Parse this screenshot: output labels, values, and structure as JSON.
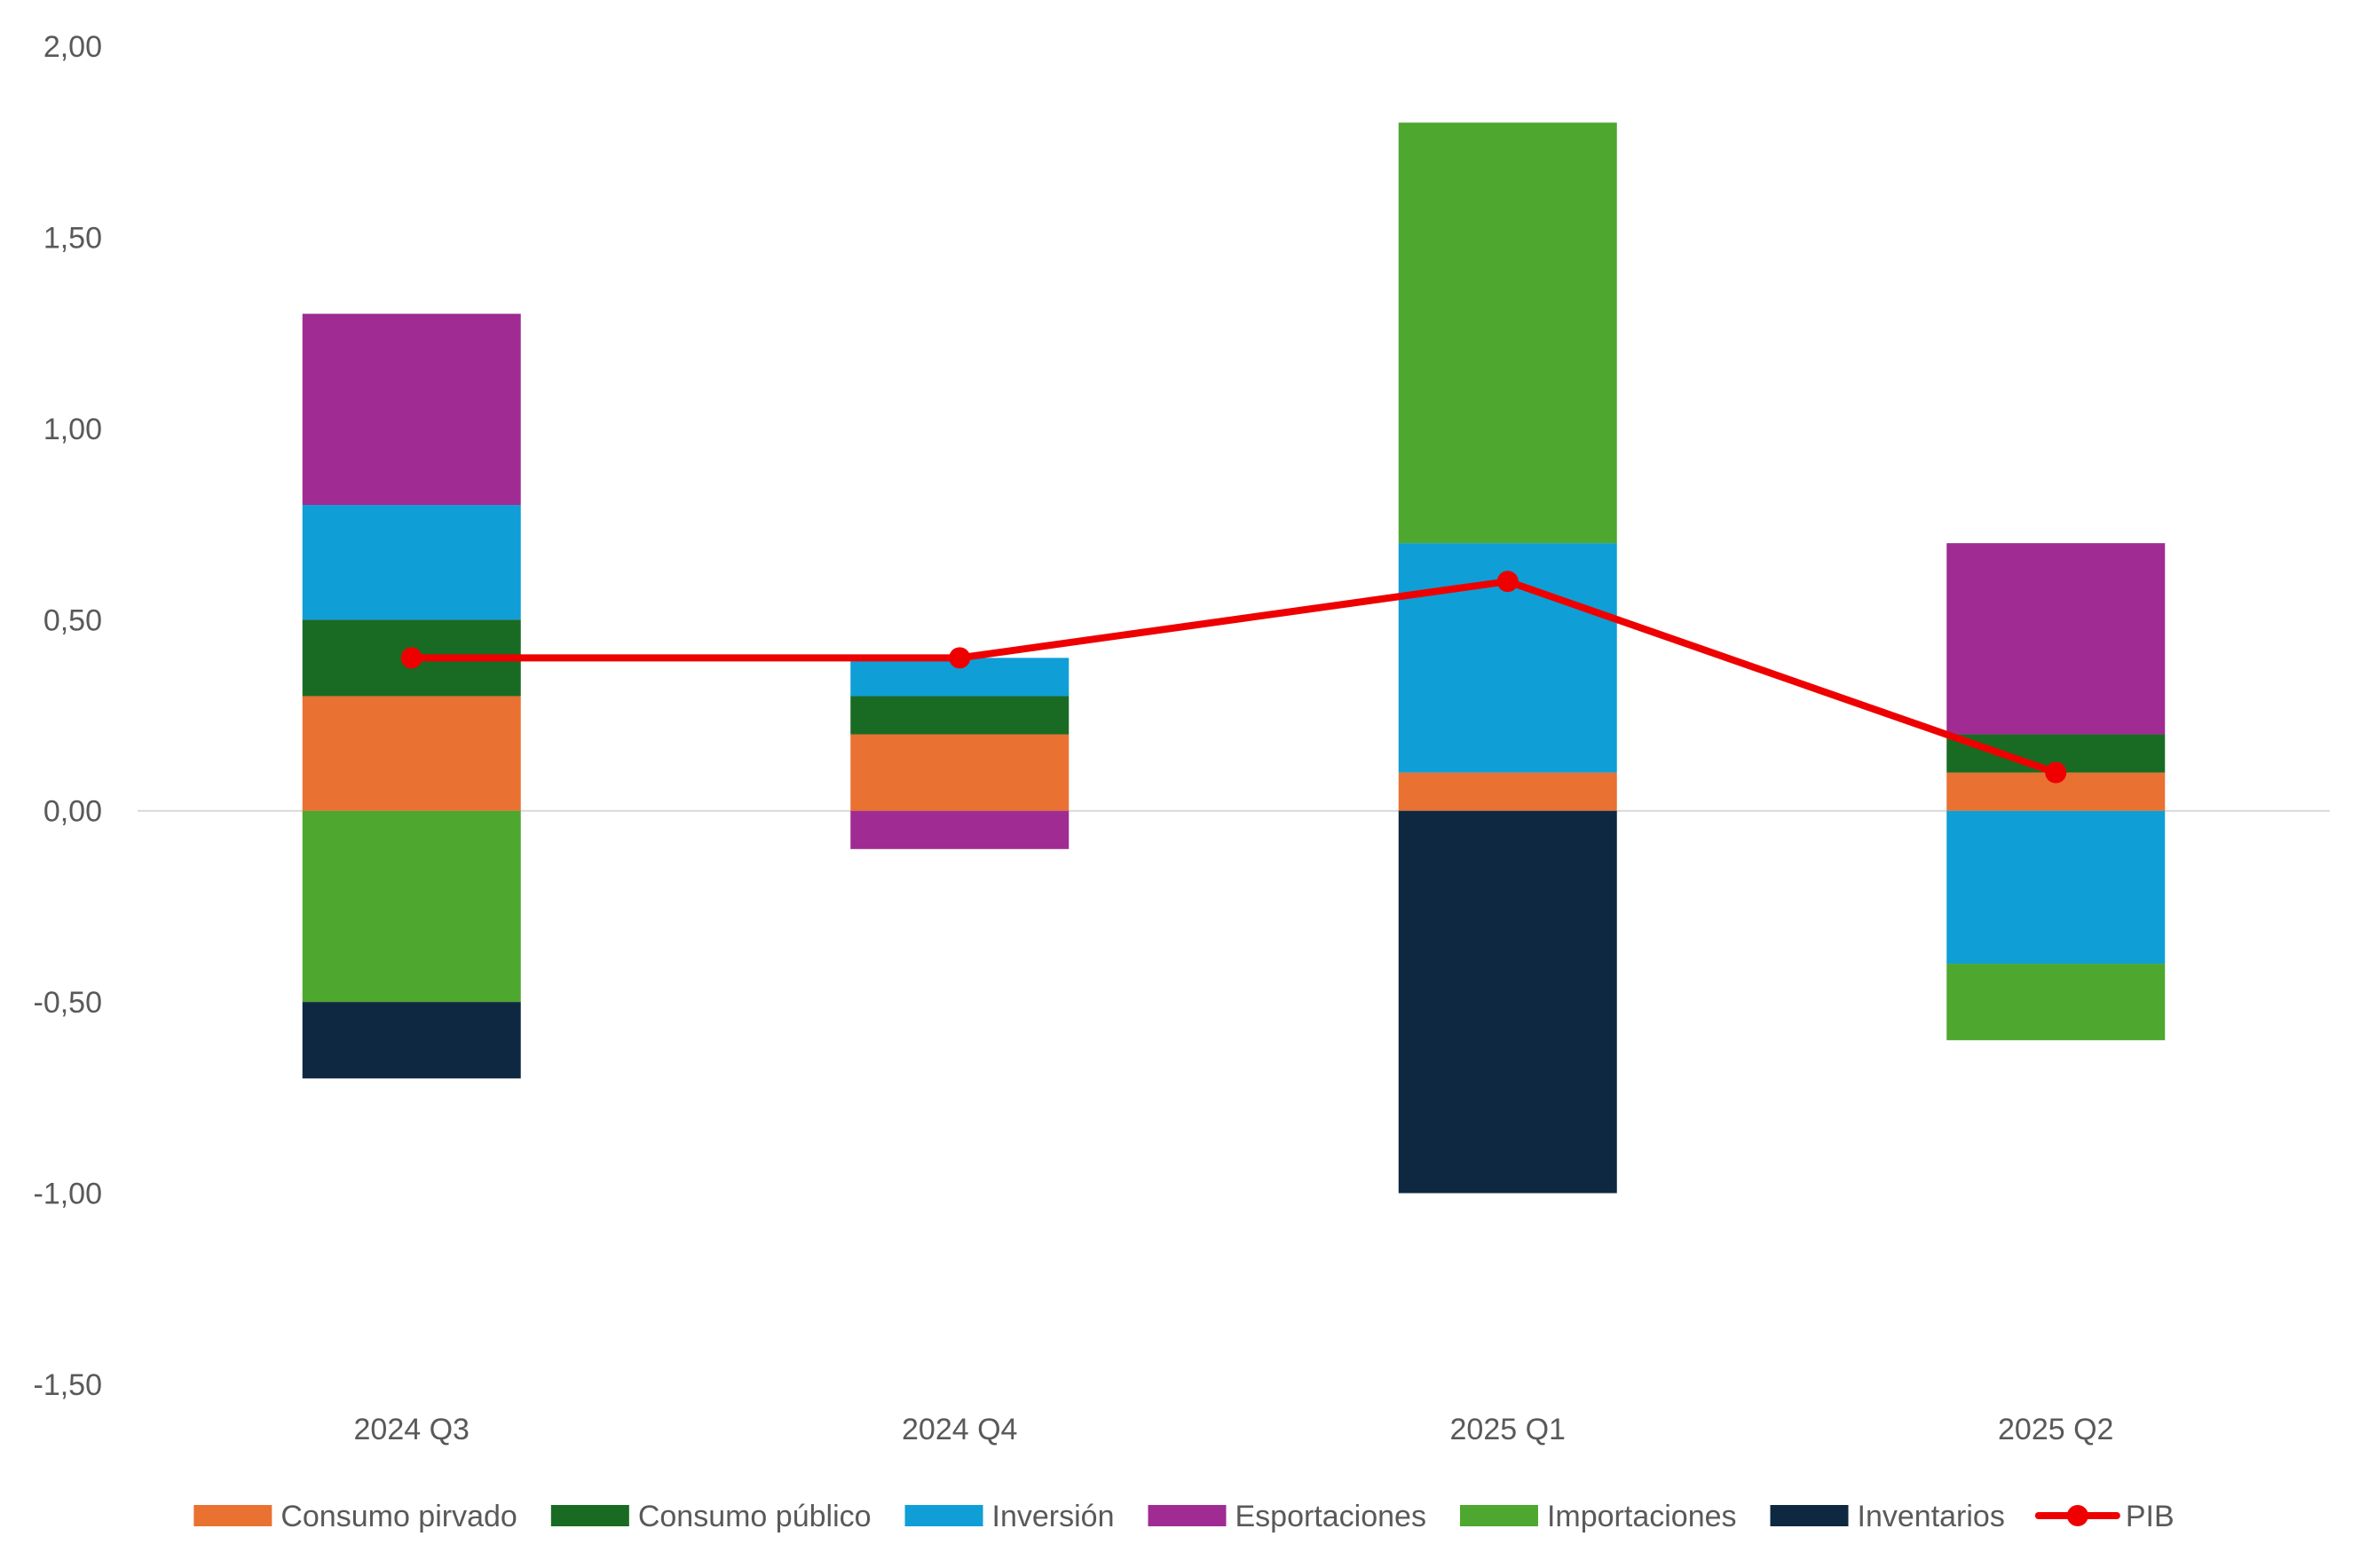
{
  "chart_data": {
    "type": "bar",
    "stacked": true,
    "title": "",
    "xlabel": "",
    "ylabel": "",
    "categories": [
      "2024 Q3",
      "2024 Q4",
      "2025 Q1",
      "2025 Q2"
    ],
    "ylim": [
      -1.5,
      2.0
    ],
    "yticks": [
      2.0,
      1.5,
      1.0,
      0.5,
      0.0,
      -0.5,
      -1.0,
      -1.5
    ],
    "ytick_labels": [
      "2,00",
      "1,50",
      "1,00",
      "0,50",
      "0,00",
      "-0,50",
      "-1,00",
      "-1,50"
    ],
    "grid": false,
    "legend_position": "bottom",
    "series": [
      {
        "name": "Consumo pirvado",
        "color": "#E97132",
        "values": [
          0.3,
          0.2,
          0.1,
          0.1
        ]
      },
      {
        "name": "Consumo público",
        "color": "#196B24",
        "values": [
          0.2,
          0.1,
          0.0,
          0.1
        ]
      },
      {
        "name": "Inversión",
        "color": "#0F9ED5",
        "values": [
          0.3,
          0.1,
          0.6,
          -0.4
        ]
      },
      {
        "name": "Esportaciones",
        "color": "#A02B93",
        "values": [
          0.5,
          -0.1,
          0.0,
          0.5
        ]
      },
      {
        "name": "Importaciones",
        "color": "#4EA72E",
        "values": [
          -0.5,
          0.0,
          1.1,
          -0.2
        ]
      },
      {
        "name": "Inventarios",
        "color": "#0E2841",
        "values": [
          -0.2,
          0.0,
          -1.0,
          0.0
        ]
      }
    ],
    "line_series": {
      "name": "PIB",
      "color": "#EE0000",
      "type": "line",
      "values": [
        0.4,
        0.4,
        0.6,
        0.1
      ]
    }
  }
}
